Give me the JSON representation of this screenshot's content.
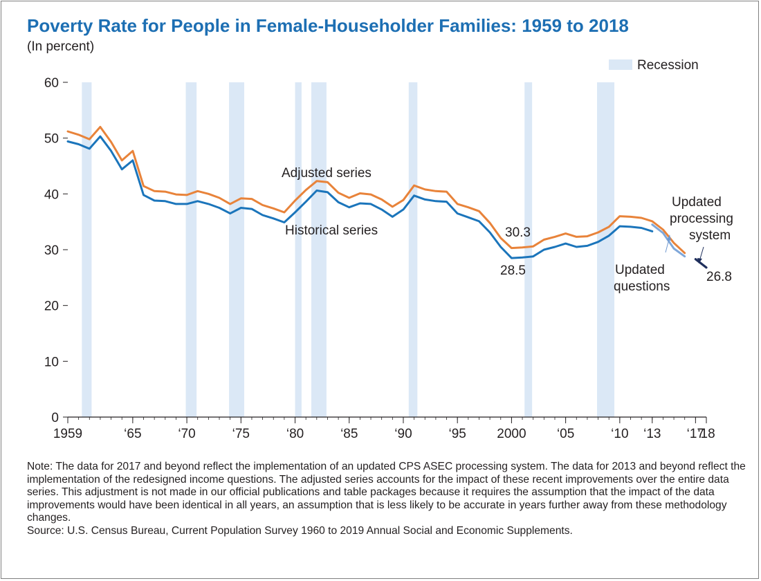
{
  "chart_data": {
    "type": "line",
    "title": "Poverty Rate for People in Female-Householder Families: 1959 to 2018",
    "subtitle": "(In percent)",
    "ylim": [
      0,
      60
    ],
    "yticks": [
      0,
      10,
      20,
      30,
      40,
      50,
      60
    ],
    "xlim": [
      1959,
      2018
    ],
    "xtick_labels": [
      {
        "year": 1959,
        "label": "1959"
      },
      {
        "year": 1965,
        "label": "‘65"
      },
      {
        "year": 1970,
        "label": "‘70"
      },
      {
        "year": 1975,
        "label": "‘75"
      },
      {
        "year": 1980,
        "label": "‘80"
      },
      {
        "year": 1985,
        "label": "‘85"
      },
      {
        "year": 1990,
        "label": "‘90"
      },
      {
        "year": 1995,
        "label": "‘95"
      },
      {
        "year": 2000,
        "label": "2000"
      },
      {
        "year": 2005,
        "label": "‘05"
      },
      {
        "year": 2010,
        "label": "‘10"
      },
      {
        "year": 2013,
        "label": "‘13"
      },
      {
        "year": 2017,
        "label": "‘17"
      },
      {
        "year": 2018,
        "label": "‘18"
      }
    ],
    "grid": false,
    "legend": {
      "label": "Recession",
      "position": "top-right",
      "color": "#dbe8f6"
    },
    "recessions": [
      [
        1960.3,
        1961.2
      ],
      [
        1969.9,
        1970.9
      ],
      [
        1973.9,
        1975.3
      ],
      [
        1980.0,
        1980.6
      ],
      [
        1981.5,
        1982.9
      ],
      [
        1990.5,
        1991.3
      ],
      [
        2001.2,
        2001.9
      ],
      [
        2007.9,
        2009.5
      ]
    ],
    "series": [
      {
        "name": "Adjusted series",
        "color": "#e8833a",
        "x": [
          1959,
          1960,
          1961,
          1962,
          1963,
          1964,
          1965,
          1966,
          1967,
          1968,
          1969,
          1970,
          1971,
          1972,
          1973,
          1974,
          1975,
          1976,
          1977,
          1978,
          1979,
          1980,
          1981,
          1982,
          1983,
          1984,
          1985,
          1986,
          1987,
          1988,
          1989,
          1990,
          1991,
          1992,
          1993,
          1994,
          1995,
          1996,
          1997,
          1998,
          1999,
          2000,
          2001,
          2002,
          2003,
          2004,
          2005,
          2006,
          2007,
          2008,
          2009,
          2010,
          2011,
          2012,
          2013,
          2014,
          2015,
          2016
        ],
        "values": [
          51.2,
          50.6,
          49.8,
          52.0,
          49.3,
          46.0,
          47.7,
          41.4,
          40.5,
          40.4,
          39.9,
          39.8,
          40.5,
          40.0,
          39.3,
          38.2,
          39.2,
          39.1,
          38.0,
          37.4,
          36.7,
          38.8,
          40.7,
          42.3,
          42.1,
          40.2,
          39.3,
          40.1,
          39.9,
          39.0,
          37.7,
          38.9,
          41.5,
          40.8,
          40.5,
          40.4,
          38.2,
          37.6,
          36.9,
          34.8,
          32.1,
          30.3,
          30.4,
          30.6,
          31.8,
          32.3,
          32.9,
          32.3,
          32.4,
          33.1,
          34.1,
          36.0,
          35.9,
          35.7,
          35.1,
          33.6,
          31.2,
          29.4
        ]
      },
      {
        "name": "Historical series",
        "color": "#1b75bb",
        "x": [
          1959,
          1960,
          1961,
          1962,
          1963,
          1964,
          1965,
          1966,
          1967,
          1968,
          1969,
          1970,
          1971,
          1972,
          1973,
          1974,
          1975,
          1976,
          1977,
          1978,
          1979,
          1980,
          1981,
          1982,
          1983,
          1984,
          1985,
          1986,
          1987,
          1988,
          1989,
          1990,
          1991,
          1992,
          1993,
          1994,
          1995,
          1996,
          1997,
          1998,
          1999,
          2000,
          2001,
          2002,
          2003,
          2004,
          2005,
          2006,
          2007,
          2008,
          2009,
          2010,
          2011,
          2012,
          2013
        ],
        "values": [
          49.4,
          48.9,
          48.1,
          50.3,
          47.7,
          44.4,
          46.0,
          39.8,
          38.8,
          38.7,
          38.2,
          38.2,
          38.7,
          38.2,
          37.5,
          36.5,
          37.5,
          37.3,
          36.2,
          35.6,
          34.9,
          36.7,
          38.6,
          40.6,
          40.3,
          38.5,
          37.6,
          38.3,
          38.2,
          37.2,
          35.9,
          37.2,
          39.7,
          39.0,
          38.7,
          38.6,
          36.5,
          35.8,
          35.1,
          33.1,
          30.5,
          28.5,
          28.6,
          28.8,
          30.0,
          30.5,
          31.1,
          30.5,
          30.7,
          31.4,
          32.5,
          34.2,
          34.1,
          33.9,
          33.3
        ]
      },
      {
        "name": "Updated questions",
        "color": "#7fa7d9",
        "x": [
          2013,
          2014,
          2015,
          2016
        ],
        "values": [
          34.5,
          33.0,
          30.2,
          28.8
        ]
      },
      {
        "name": "Updated processing system",
        "color": "#1f2f5c",
        "x": [
          2017,
          2018
        ],
        "values": [
          28.3,
          26.8
        ]
      }
    ],
    "annotations": {
      "adjusted_label": "Adjusted series",
      "historical_label": "Historical series",
      "questions_label_1": "Updated",
      "questions_label_2": "questions",
      "processing_label_1": "Updated",
      "processing_label_2": "processing",
      "processing_label_3": "system",
      "value_2000_adjusted": "30.3",
      "value_2000_historical": "28.5",
      "value_2018": "26.8"
    }
  },
  "notes": {
    "note": "Note: The data for 2017 and beyond reflect the implementation of an updated CPS ASEC processing system. The data for 2013 and beyond reflect the implementation of the redesigned income questions. The adjusted series accounts for the impact of these recent improvements over the entire data series. This adjustment is not made in our official publications and table packages because it requires the assumption that the impact of the data improvements would have been identical in all years, an assumption that is less likely to be accurate in years further away from these methodology changes.",
    "source": "Source: U.S. Census Bureau, Current Population Survey 1960 to 2019 Annual Social and Economic Supplements."
  }
}
